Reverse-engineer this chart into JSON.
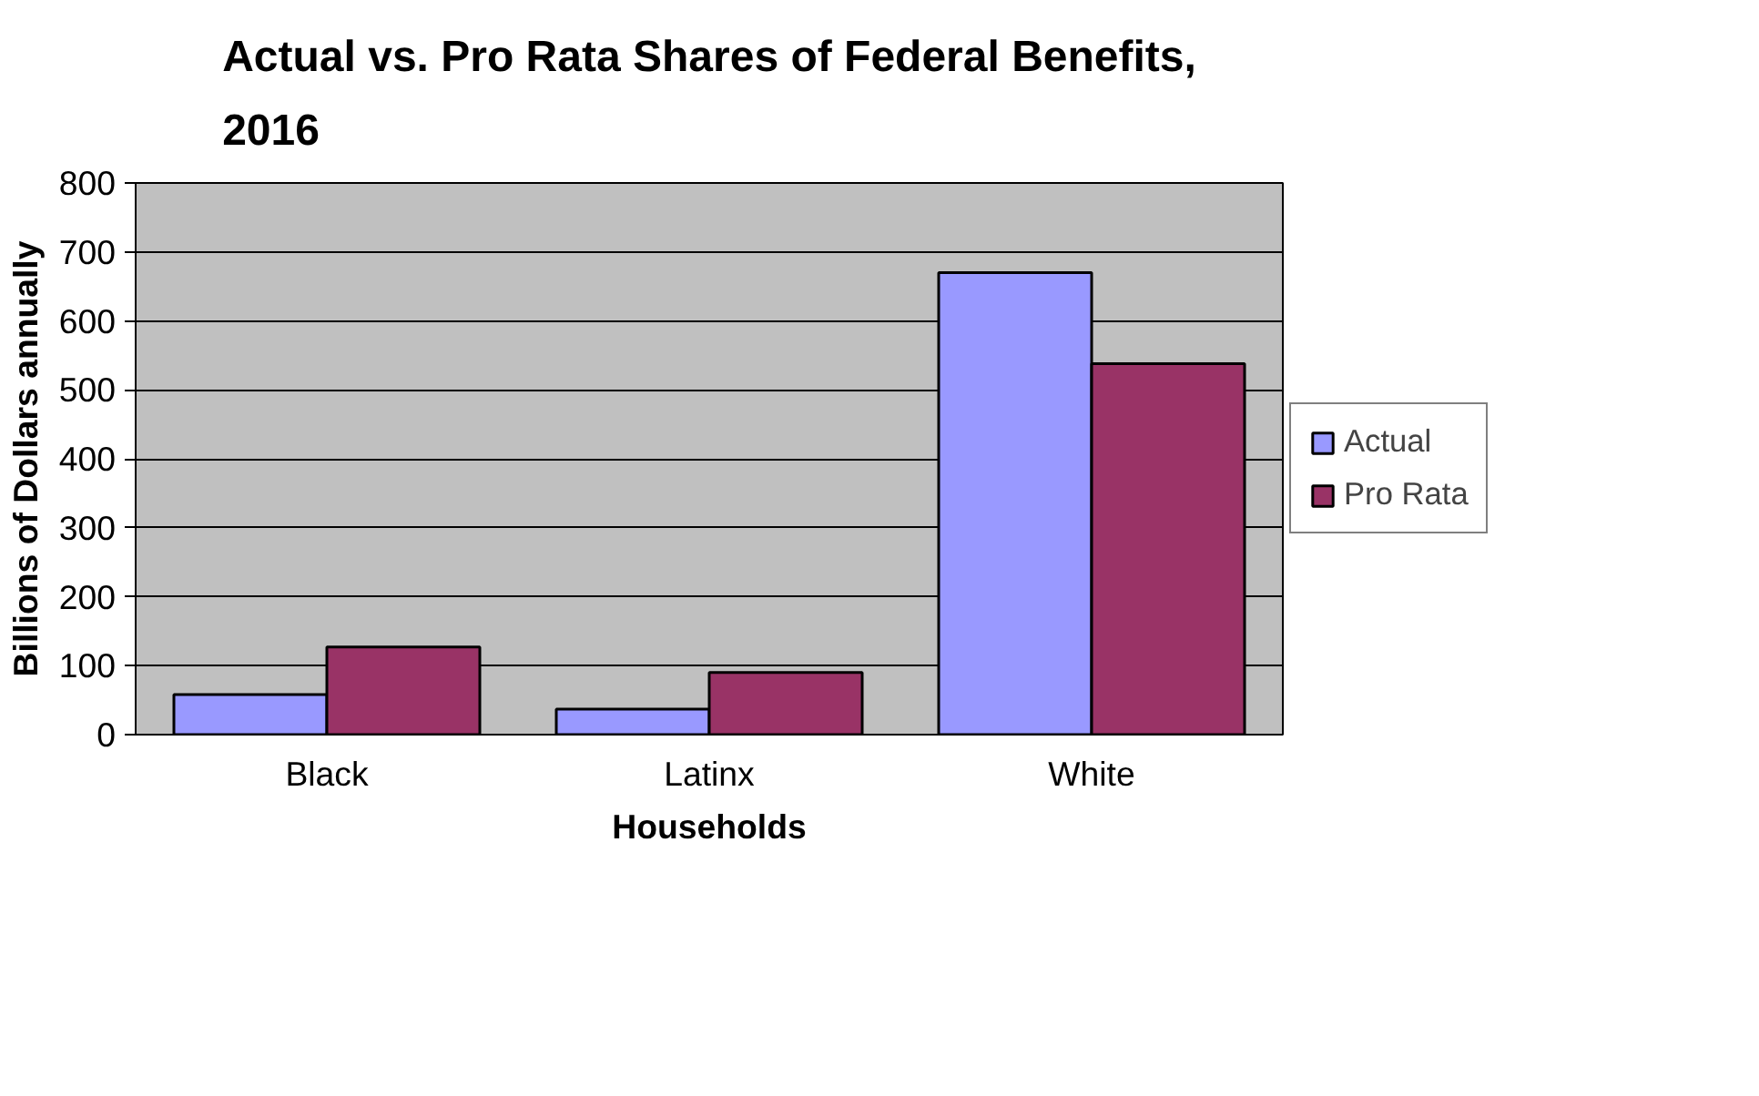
{
  "chart_data": {
    "type": "bar",
    "title": "Actual vs. Pro Rata Shares of Federal Benefits, 2016",
    "xlabel": "Households",
    "ylabel": "Billions of Dollars annually",
    "categories": [
      "Black",
      "Latinx",
      "White"
    ],
    "series": [
      {
        "name": "Actual",
        "color": "#9999ff",
        "values": [
          58,
          37,
          670
        ]
      },
      {
        "name": "Pro Rata",
        "color": "#993366",
        "values": [
          127,
          90,
          538
        ]
      }
    ],
    "ylim": [
      0,
      800
    ],
    "yticks": [
      0,
      100,
      200,
      300,
      400,
      500,
      600,
      700,
      800
    ],
    "grid": "y",
    "legend": "right"
  }
}
